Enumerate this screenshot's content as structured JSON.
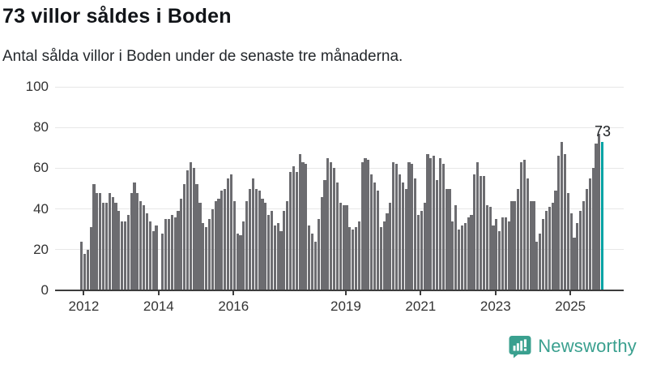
{
  "header": {
    "title": "73 villor såldes i Boden",
    "subtitle": "Antal sålda villor i Boden under de senaste tre månaderna."
  },
  "chart_data": {
    "type": "bar",
    "title": "73 villor såldes i Boden",
    "subtitle": "Antal sålda villor i Boden under de senaste tre månaderna.",
    "x_unit": "month",
    "x_start": "2012-01",
    "x_end": "2025-12",
    "values": [
      24,
      18,
      20,
      31,
      52,
      48,
      48,
      43,
      43,
      48,
      46,
      43,
      39,
      34,
      34,
      37,
      48,
      53,
      48,
      44,
      42,
      38,
      34,
      29,
      32,
      0,
      28,
      35,
      35,
      37,
      36,
      39,
      45,
      52,
      59,
      63,
      60,
      52,
      43,
      33,
      31,
      35,
      40,
      44,
      45,
      49,
      50,
      55,
      57,
      44,
      28,
      27,
      34,
      44,
      50,
      55,
      50,
      49,
      45,
      43,
      37,
      39,
      32,
      33,
      29,
      39,
      44,
      58,
      61,
      58,
      67,
      63,
      62,
      32,
      28,
      24,
      35,
      46,
      54,
      65,
      63,
      60,
      53,
      43,
      42,
      42,
      31,
      30,
      31,
      34,
      63,
      65,
      64,
      57,
      53,
      49,
      31,
      34,
      38,
      43,
      63,
      62,
      57,
      53,
      50,
      63,
      62,
      55,
      37,
      39,
      43,
      67,
      65,
      66,
      54,
      65,
      62,
      50,
      50,
      34,
      42,
      30,
      32,
      33,
      36,
      37,
      57,
      63,
      56,
      56,
      42,
      41,
      32,
      35,
      29,
      36,
      36,
      34,
      44,
      44,
      50,
      63,
      64,
      55,
      44,
      44,
      24,
      28,
      35,
      39,
      41,
      43,
      49,
      66,
      73,
      67,
      48,
      38,
      26,
      33,
      39,
      44,
      50,
      55,
      60,
      72,
      77,
      73
    ],
    "highlight_last_value": 73,
    "annotation": {
      "text": "73",
      "value": 73
    },
    "x_tick_labels": [
      "2012",
      "2014",
      "2016",
      "2019",
      "2021",
      "2023",
      "2025"
    ],
    "y_ticks": [
      "0",
      "20",
      "40",
      "60",
      "80",
      "100"
    ],
    "ylim": [
      0,
      100
    ],
    "grid": "horizontal",
    "bar_color": "#6c6c70",
    "highlight_color": "#00a2a4",
    "axis_color": "#3c3c3c"
  },
  "footer": {
    "brand": "Newsworthy"
  }
}
